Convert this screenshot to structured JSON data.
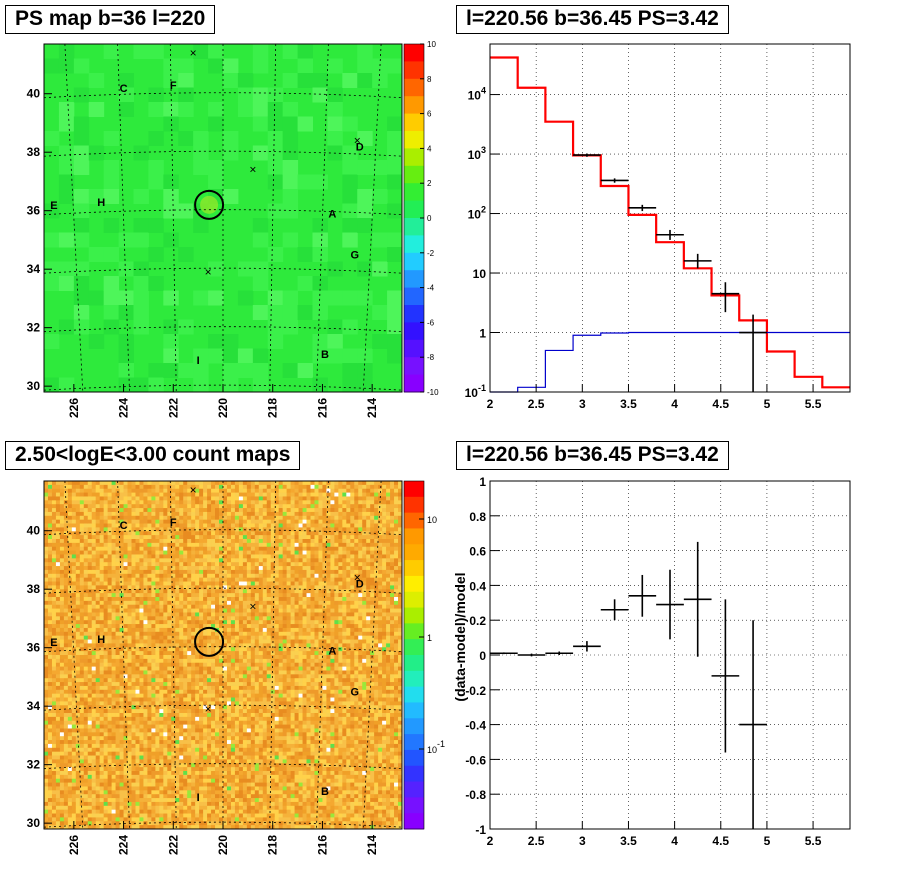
{
  "titles": {
    "map_top": "PS map b=36 l=220",
    "spec_top": "l=220.56 b=36.45 PS=3.42",
    "map_bottom": "2.50<logE<3.00 count maps",
    "spec_bottom": "l=220.56 b=36.45 PS=3.42"
  },
  "chart_data": [
    {
      "id": "ps_map",
      "type": "heatmap",
      "title": "PS map b=36 l=220",
      "x_ticks": [
        "226",
        "224",
        "222",
        "220",
        "218",
        "216",
        "214"
      ],
      "x_tick_values": [
        226,
        224,
        222,
        220,
        218,
        216,
        214
      ],
      "xlim": [
        227.2,
        212.8
      ],
      "y_ticks": [
        "30",
        "32",
        "34",
        "36",
        "38",
        "40"
      ],
      "y_tick_values": [
        30,
        32,
        34,
        36,
        38,
        40
      ],
      "ylim": [
        29.8,
        41.7
      ],
      "colorbar_ticks": [
        "10",
        "8",
        "6",
        "4",
        "2",
        "0",
        "-2",
        "-4",
        "-6",
        "-8",
        "-10"
      ],
      "colorbar_range": [
        -10,
        10
      ],
      "dominant_value": 0,
      "source_labels": [
        {
          "text": "C",
          "l": 224.0,
          "b": 40.2
        },
        {
          "text": "F",
          "l": 222.0,
          "b": 40.3
        },
        {
          "text": "D",
          "l": 214.5,
          "b": 38.2
        },
        {
          "text": "E",
          "l": 226.8,
          "b": 36.2
        },
        {
          "text": "H",
          "l": 224.9,
          "b": 36.3
        },
        {
          "text": "A",
          "l": 215.6,
          "b": 35.9
        },
        {
          "text": "G",
          "l": 214.7,
          "b": 34.5
        },
        {
          "text": "I",
          "l": 221.0,
          "b": 30.9
        },
        {
          "text": "B",
          "l": 215.9,
          "b": 31.1
        }
      ],
      "x_markers": [
        {
          "l": 221.2,
          "b": 41.4
        },
        {
          "l": 218.8,
          "b": 37.4
        },
        {
          "l": 220.6,
          "b": 33.9
        },
        {
          "l": 214.6,
          "b": 38.4
        }
      ],
      "circle": {
        "l": 220.56,
        "b": 36.2
      }
    },
    {
      "id": "spectrum",
      "type": "line",
      "title": "l=220.56 b=36.45 PS=3.42",
      "xlim": [
        2.0,
        5.9
      ],
      "ylim_log10": [
        -1,
        4.85
      ],
      "yscale": "log",
      "x_ticks": [
        "2",
        "2.5",
        "3",
        "3.5",
        "4",
        "4.5",
        "5",
        "5.5"
      ],
      "x_tick_values": [
        2,
        2.5,
        3,
        3.5,
        4,
        4.5,
        5,
        5.5
      ],
      "y_ticks": [
        "10^-1",
        "1",
        "10",
        "10^2",
        "10^3",
        "10^4"
      ],
      "y_tick_values": [
        0.1,
        1,
        10,
        100,
        1000,
        10000
      ],
      "grid": true,
      "series": [
        {
          "color": "#ff0000",
          "style": "step",
          "bins": [
            2.0,
            2.3,
            2.6,
            2.9,
            3.2,
            3.5,
            3.8,
            4.1,
            4.4,
            4.7,
            5.0,
            5.3,
            5.6,
            5.9
          ],
          "values": [
            42000,
            13000,
            3500,
            950,
            290,
            95,
            33,
            12,
            4.2,
            1.6,
            0.48,
            0.18,
            0.12
          ]
        },
        {
          "color": "#0000cc",
          "style": "step",
          "bins": [
            2.0,
            2.3,
            2.6,
            2.9,
            3.2,
            3.5,
            3.8,
            4.1,
            4.4,
            4.7,
            5.0,
            5.3,
            5.6,
            5.9
          ],
          "values": [
            0.1,
            0.12,
            0.5,
            0.9,
            0.98,
            1.0,
            1.0,
            1.0,
            1.0,
            1.0,
            1.0,
            1.0,
            1.0
          ]
        },
        {
          "color": "#000000",
          "style": "errorbars",
          "points": [
            {
              "x": 3.05,
              "y": 960,
              "lo": 900,
              "hi": 1020
            },
            {
              "x": 3.35,
              "y": 360,
              "lo": 330,
              "hi": 390
            },
            {
              "x": 3.65,
              "y": 125,
              "lo": 110,
              "hi": 140
            },
            {
              "x": 3.95,
              "y": 44,
              "lo": 36,
              "hi": 53
            },
            {
              "x": 4.25,
              "y": 16,
              "lo": 12,
              "hi": 21
            },
            {
              "x": 4.55,
              "y": 4.5,
              "lo": 2.2,
              "hi": 7
            },
            {
              "x": 4.85,
              "y": 1.0,
              "lo": 0.1,
              "hi": 2.0
            }
          ]
        }
      ]
    },
    {
      "id": "count_map",
      "type": "heatmap",
      "title": "2.50<logE<3.00 count maps",
      "x_ticks": [
        "226",
        "224",
        "222",
        "220",
        "218",
        "216",
        "214"
      ],
      "x_tick_values": [
        226,
        224,
        222,
        220,
        218,
        216,
        214
      ],
      "xlim": [
        227.2,
        212.8
      ],
      "y_ticks": [
        "30",
        "32",
        "34",
        "36",
        "38",
        "40"
      ],
      "y_tick_values": [
        30,
        32,
        34,
        36,
        38,
        40
      ],
      "ylim": [
        29.8,
        41.7
      ],
      "colorbar_ticks": [
        "10",
        "1",
        "10^-1"
      ],
      "colorbar_scale": "log",
      "source_labels": [
        {
          "text": "C",
          "l": 224.0,
          "b": 40.2
        },
        {
          "text": "F",
          "l": 222.0,
          "b": 40.3
        },
        {
          "text": "D",
          "l": 214.5,
          "b": 38.2
        },
        {
          "text": "E",
          "l": 226.8,
          "b": 36.2
        },
        {
          "text": "H",
          "l": 224.9,
          "b": 36.3
        },
        {
          "text": "A",
          "l": 215.6,
          "b": 35.9
        },
        {
          "text": "G",
          "l": 214.7,
          "b": 34.5
        },
        {
          "text": "I",
          "l": 221.0,
          "b": 30.9
        },
        {
          "text": "B",
          "l": 215.9,
          "b": 31.1
        }
      ],
      "x_markers": [
        {
          "l": 221.2,
          "b": 41.4
        },
        {
          "l": 218.8,
          "b": 37.4
        },
        {
          "l": 220.6,
          "b": 33.9
        },
        {
          "l": 214.6,
          "b": 38.4
        }
      ],
      "circle": {
        "l": 220.56,
        "b": 36.2
      }
    },
    {
      "id": "residual",
      "type": "scatter",
      "title": "l=220.56 b=36.45 PS=3.42",
      "ylabel": "(data-model)/model",
      "xlim": [
        2.0,
        5.9
      ],
      "ylim": [
        -1,
        1
      ],
      "x_ticks": [
        "2",
        "2.5",
        "3",
        "3.5",
        "4",
        "4.5",
        "5",
        "5.5"
      ],
      "x_tick_values": [
        2,
        2.5,
        3,
        3.5,
        4,
        4.5,
        5,
        5.5
      ],
      "y_ticks": [
        "-1",
        "-0.8",
        "-0.6",
        "-0.4",
        "-0.2",
        "0",
        "0.2",
        "0.4",
        "0.6",
        "0.8",
        "1"
      ],
      "y_tick_values": [
        -1,
        -0.8,
        -0.6,
        -0.4,
        -0.2,
        0,
        0.2,
        0.4,
        0.6,
        0.8,
        1
      ],
      "grid": true,
      "points": [
        {
          "x": 2.15,
          "y": 0.01,
          "err": 0.005,
          "xerr": 0.15
        },
        {
          "x": 2.45,
          "y": 0.0,
          "err": 0.008,
          "xerr": 0.15
        },
        {
          "x": 2.75,
          "y": 0.01,
          "err": 0.01,
          "xerr": 0.15
        },
        {
          "x": 3.05,
          "y": 0.05,
          "err": 0.03,
          "xerr": 0.15
        },
        {
          "x": 3.35,
          "y": 0.26,
          "err": 0.06,
          "xerr": 0.15
        },
        {
          "x": 3.65,
          "y": 0.34,
          "err": 0.12,
          "xerr": 0.15
        },
        {
          "x": 3.95,
          "y": 0.29,
          "err": 0.2,
          "xerr": 0.15
        },
        {
          "x": 4.25,
          "y": 0.32,
          "err": 0.33,
          "xerr": 0.15
        },
        {
          "x": 4.55,
          "y": -0.12,
          "err": 0.44,
          "xerr": 0.15
        },
        {
          "x": 4.85,
          "y": -0.4,
          "err": 0.6,
          "xerr": 0.15
        }
      ]
    }
  ]
}
